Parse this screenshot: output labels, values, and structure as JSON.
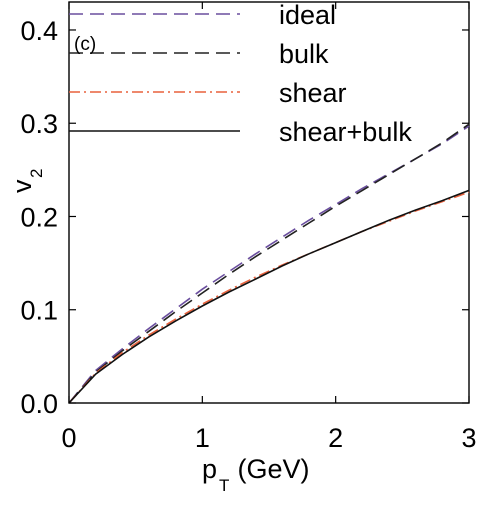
{
  "chart_data": {
    "type": "line",
    "panel_label": "(c)",
    "xlabel": "p",
    "xlabel_subscript": "T",
    "xlabel_unit": " (GeV)",
    "ylabel": "v",
    "ylabel_subscript": "2",
    "xlim": [
      0,
      3
    ],
    "ylim": [
      0,
      0.43
    ],
    "xticks": [
      0,
      1,
      2,
      3
    ],
    "xtick_labels": [
      "0",
      "1",
      "2",
      "3"
    ],
    "yticks": [
      0.0,
      0.1,
      0.2,
      0.3,
      0.4
    ],
    "ytick_labels": [
      "0.0",
      "0.1",
      "0.2",
      "0.3",
      "0.4"
    ],
    "grid": false,
    "legend_position": "top-right",
    "series": [
      {
        "name": "ideal",
        "color": "#6a4e9e",
        "dash": "dashed",
        "x": [
          0,
          0.2,
          0.4,
          0.6,
          0.8,
          1.0,
          1.2,
          1.4,
          1.6,
          1.8,
          2.0,
          2.2,
          2.4,
          2.6,
          2.8,
          3.0
        ],
        "y": [
          0,
          0.035,
          0.058,
          0.08,
          0.101,
          0.122,
          0.141,
          0.16,
          0.178,
          0.196,
          0.213,
          0.23,
          0.246,
          0.262,
          0.278,
          0.297
        ]
      },
      {
        "name": "bulk",
        "color": "#222222",
        "dash": "dashed",
        "x": [
          0,
          0.2,
          0.4,
          0.6,
          0.8,
          1.0,
          1.2,
          1.4,
          1.6,
          1.8,
          2.0,
          2.2,
          2.4,
          2.6,
          2.8,
          3.0
        ],
        "y": [
          0,
          0.033,
          0.056,
          0.077,
          0.098,
          0.118,
          0.138,
          0.157,
          0.175,
          0.193,
          0.211,
          0.228,
          0.245,
          0.262,
          0.279,
          0.299
        ]
      },
      {
        "name": "shear",
        "color": "#e8613c",
        "dash": "dashdot",
        "x": [
          0,
          0.2,
          0.4,
          0.6,
          0.8,
          1.0,
          1.2,
          1.4,
          1.6,
          1.8,
          2.0,
          2.2,
          2.4,
          2.6,
          2.8,
          3.0
        ],
        "y": [
          0,
          0.032,
          0.054,
          0.073,
          0.09,
          0.106,
          0.121,
          0.135,
          0.148,
          0.16,
          0.172,
          0.184,
          0.195,
          0.206,
          0.216,
          0.226
        ]
      },
      {
        "name": "shear+bulk",
        "color": "#111111",
        "dash": "solid",
        "x": [
          0,
          0.2,
          0.4,
          0.6,
          0.8,
          1.0,
          1.2,
          1.4,
          1.6,
          1.8,
          2.0,
          2.2,
          2.4,
          2.6,
          2.8,
          3.0
        ],
        "y": [
          0,
          0.031,
          0.052,
          0.071,
          0.088,
          0.104,
          0.119,
          0.133,
          0.147,
          0.16,
          0.172,
          0.184,
          0.196,
          0.207,
          0.217,
          0.228
        ]
      }
    ]
  }
}
